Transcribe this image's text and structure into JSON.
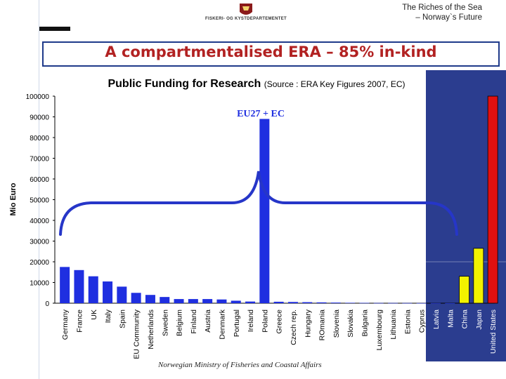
{
  "header": {
    "logo_text": "FISKERI- OG KYSTDEPARTEMENTET",
    "brand_line1": "The Riches of the Sea",
    "brand_line2": "– Norway`s Future"
  },
  "slide": {
    "title": "A compartmentalised ERA – 85% in-kind",
    "footer": "Norwegian Ministry of Fisheries and Coastal Affairs"
  },
  "colors": {
    "eu_bars": "#1f2fe0",
    "international_bars": "#f2f200",
    "us_bar": "#e01010",
    "right_panel": "#2b3d8f",
    "title": "#b22222",
    "brace": "#2636c8"
  },
  "chart_data": {
    "type": "bar",
    "title": "Public Funding for Research",
    "source": "(Source : ERA Key Figures 2007, EC)",
    "ylabel": "Mio Euro",
    "xlabel": "",
    "ylim": [
      0,
      100000
    ],
    "yticks": [
      "0",
      "10000",
      "20000",
      "30000",
      "40000",
      "50000",
      "60000",
      "70000",
      "80000",
      "90000",
      "100000"
    ],
    "annotation": "EU27 + EC",
    "grid": false,
    "categories": [
      "Germany",
      "France",
      "UK",
      "Italy",
      "Spain",
      "EU Community",
      "Netherlands",
      "Sweden",
      "Belgium",
      "Finland",
      "Austria",
      "Denmark",
      "Portugal",
      "Ireland",
      "Poland",
      "Greece",
      "Czech rep.",
      "Hungary",
      "ROmania",
      "Slovenia",
      "Slovakia",
      "Bulgaria",
      "Luxembourg",
      "Lithuania",
      "Estonia",
      "Cyprus",
      "Latvia",
      "Malta",
      "China",
      "Japan",
      "United States"
    ],
    "values": [
      17500,
      16000,
      13000,
      10500,
      8000,
      5000,
      4000,
      3000,
      2000,
      2000,
      2000,
      1800,
      1200,
      800,
      89000,
      700,
      600,
      500,
      400,
      300,
      200,
      150,
      100,
      100,
      80,
      60,
      50,
      30,
      13000,
      26500,
      100000
    ],
    "bar_groups": [
      "eu",
      "eu",
      "eu",
      "eu",
      "eu",
      "eu",
      "eu",
      "eu",
      "eu",
      "eu",
      "eu",
      "eu",
      "eu",
      "eu",
      "eu",
      "eu",
      "eu",
      "eu",
      "eu",
      "eu",
      "eu",
      "eu",
      "eu",
      "eu",
      "eu",
      "eu",
      "eu",
      "eu",
      "intl",
      "intl",
      "us"
    ]
  }
}
